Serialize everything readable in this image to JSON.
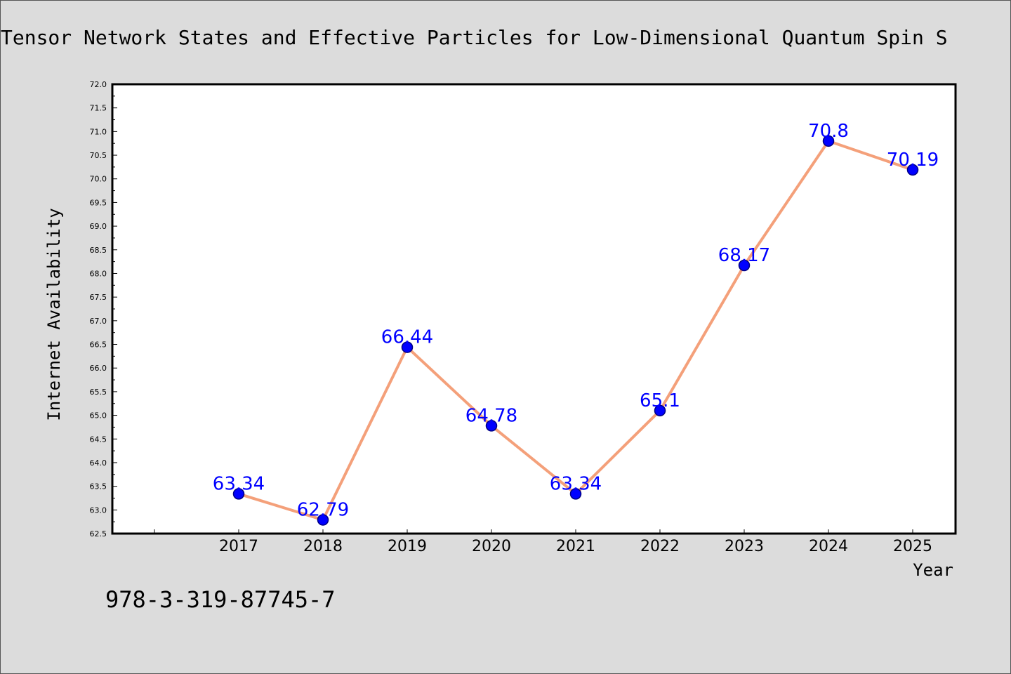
{
  "chart_data": {
    "type": "line",
    "title": "Tensor Network States and Effective Particles for Low-Dimensional Quantum Spin S",
    "xlabel": "Year",
    "ylabel": "Internet Availability",
    "categories": [
      "2017",
      "2018",
      "2019",
      "2020",
      "2021",
      "2022",
      "2023",
      "2024",
      "2025"
    ],
    "values": [
      63.34,
      62.79,
      66.44,
      64.78,
      63.34,
      65.1,
      68.17,
      70.8,
      70.19
    ],
    "data_labels": [
      "63.34",
      "62.79",
      "66.44",
      "64.78",
      "63.34",
      "65.1",
      "68.17",
      "70.8",
      "70.19"
    ],
    "ylim": [
      62.5,
      72.0
    ],
    "yticks": [
      "62.5",
      "63.0",
      "63.5",
      "64.0",
      "64.5",
      "65.0",
      "65.5",
      "66.0",
      "66.5",
      "67.0",
      "67.5",
      "68.0",
      "68.5",
      "69.0",
      "69.5",
      "70.0",
      "70.5",
      "71.0",
      "71.5",
      "72.0"
    ],
    "grid": false,
    "legend": "none",
    "colors": {
      "line": "#f4a07a",
      "marker_fill": "#0000ff",
      "marker_edge": "#000080",
      "label": "#0000ff",
      "background": "#dcdcdc",
      "plot_area": "#ffffff"
    }
  },
  "footer": {
    "isbn": "978-3-319-87745-7"
  }
}
